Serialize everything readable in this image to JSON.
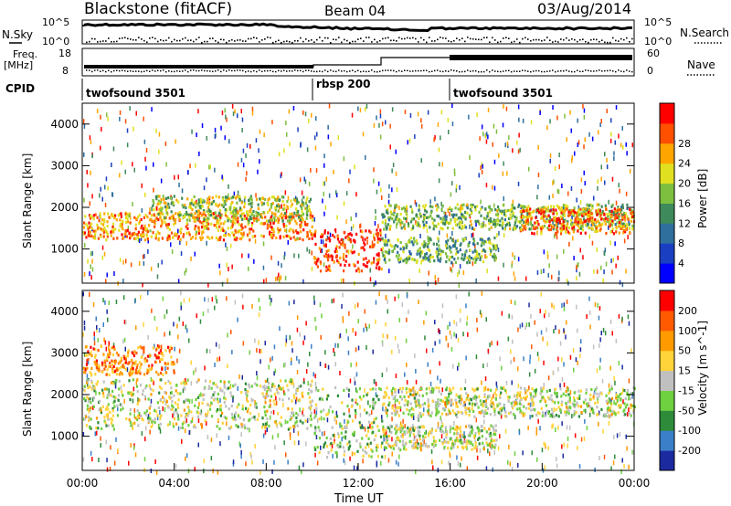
{
  "header": {
    "station": "Blackstone (fitACF)",
    "beam": "Beam 04",
    "date": "03/Aug/2014"
  },
  "noise_panel": {
    "left_label": "N.Sky",
    "right_label": "N.Search",
    "left_ticks": [
      "10^5",
      "10^0"
    ],
    "right_ticks": [
      "10^5",
      "10^0"
    ]
  },
  "freq_panel": {
    "left_label_1": "Freq.",
    "left_label_2": "[MHz]",
    "right_label": "Nave",
    "left_ticks": [
      "18",
      "8"
    ],
    "right_ticks": [
      "60",
      "0"
    ]
  },
  "cpid_panel": {
    "label": "CPID",
    "segments": [
      {
        "name": "twofsound 3501",
        "start_hour": 0
      },
      {
        "name": "rbsp 200",
        "start_hour": 10
      },
      {
        "name": "twofsound 3501",
        "start_hour": 16
      }
    ]
  },
  "chart_data": [
    {
      "type": "heatmap",
      "quantity": "power",
      "ylabel": "Slant Range [km]",
      "yticks": [
        "1000",
        "2000",
        "3000",
        "4000"
      ],
      "ylim": [
        180,
        4500
      ],
      "xlim": [
        0,
        24
      ],
      "colorbar_label": "Power [dB]",
      "colorbar_ticks": [
        "4",
        "8",
        "12",
        "16",
        "20",
        "24",
        "28"
      ],
      "colors": [
        "#0000ff",
        "#1a3fc0",
        "#2f6f9e",
        "#3f8a5a",
        "#7fbf3f",
        "#e0e020",
        "#ffa500",
        "#ff5000",
        "#ff0000"
      ],
      "bands": [
        {
          "t0": 0.0,
          "t1": 10.0,
          "r0": 1250,
          "r1": 1900,
          "level": 0.75
        },
        {
          "t0": 3.0,
          "t1": 10.0,
          "r0": 1700,
          "r1": 2300,
          "level": 0.55
        },
        {
          "t0": 10.0,
          "t1": 13.0,
          "r0": 500,
          "r1": 1500,
          "level": 0.9
        },
        {
          "t0": 13.0,
          "t1": 24.0,
          "r0": 1500,
          "r1": 2100,
          "level": 0.5
        },
        {
          "t0": 13.0,
          "t1": 18.0,
          "r0": 700,
          "r1": 1300,
          "level": 0.45
        },
        {
          "t0": 19.0,
          "t1": 24.0,
          "r0": 1400,
          "r1": 2000,
          "level": 0.8
        }
      ]
    },
    {
      "type": "heatmap",
      "quantity": "velocity",
      "xlabel": "Time UT",
      "ylabel": "Slant Range [km]",
      "yticks": [
        "1000",
        "2000",
        "3000",
        "4000"
      ],
      "ylim": [
        180,
        4500
      ],
      "xlim": [
        0,
        24
      ],
      "xticks": [
        "00:00",
        "04:00",
        "08:00",
        "12:00",
        "16:00",
        "20:00",
        "00:00"
      ],
      "colorbar_label": "Velocity [m s^-1]",
      "colorbar_ticks": [
        "200",
        "100",
        "50",
        "15",
        "-15",
        "-50",
        "-100",
        "-200"
      ],
      "colors": [
        "#1c2aa0",
        "#3a7fc8",
        "#2e8b3a",
        "#6fd040",
        "#c0c0c0",
        "#ffd33a",
        "#ff9a00",
        "#ff5a00",
        "#ff0000"
      ],
      "bands": [
        {
          "t0": 0.0,
          "t1": 10.0,
          "r0": 1200,
          "r1": 2400,
          "level": 0.5
        },
        {
          "t0": 10.0,
          "t1": 13.0,
          "r0": 500,
          "r1": 2200,
          "level": 0.45
        },
        {
          "t0": 13.0,
          "t1": 24.0,
          "r0": 1500,
          "r1": 2200,
          "level": 0.5
        },
        {
          "t0": 13.0,
          "t1": 18.0,
          "r0": 700,
          "r1": 1300,
          "level": 0.5
        },
        {
          "t0": 0.0,
          "t1": 4.0,
          "r0": 2500,
          "r1": 3200,
          "level": 0.75
        }
      ]
    }
  ]
}
